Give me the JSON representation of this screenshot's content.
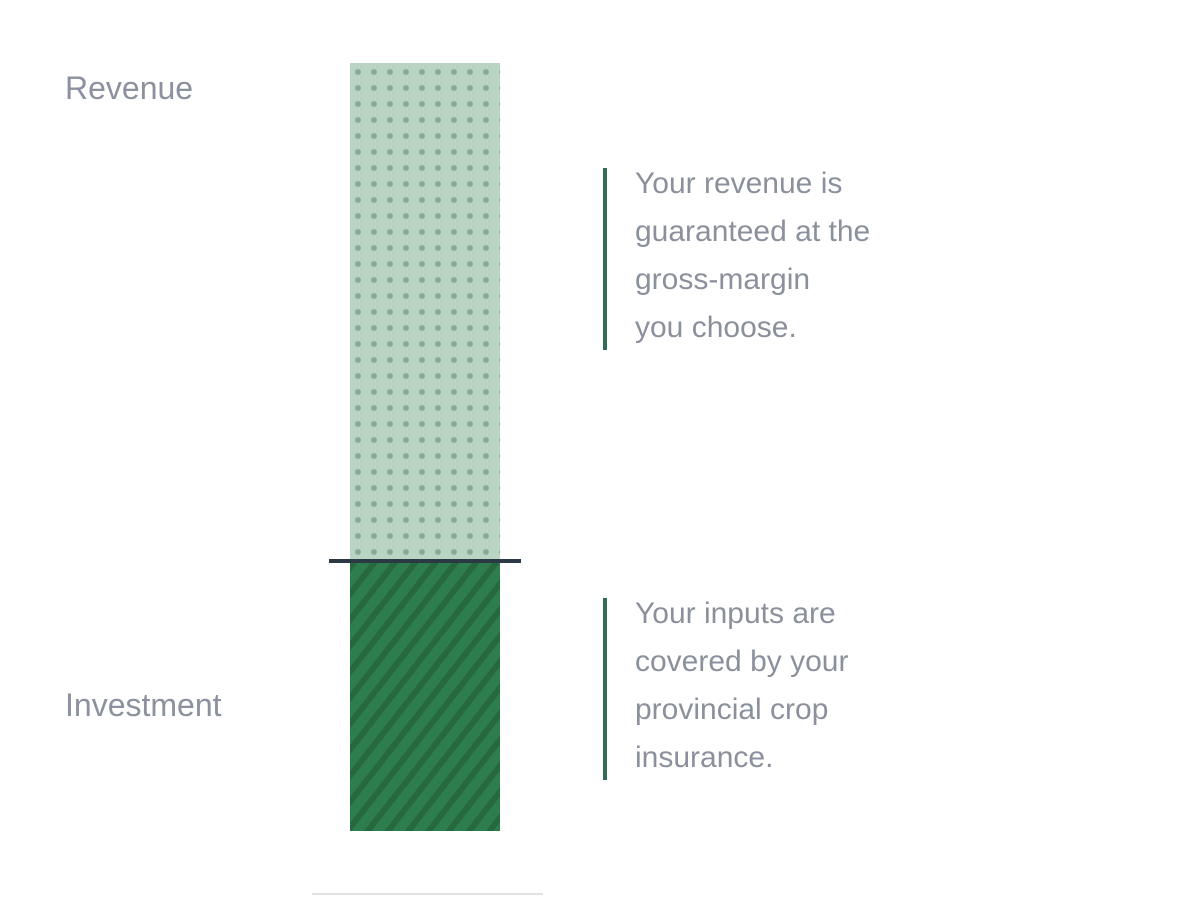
{
  "diagram": {
    "revenue_label": "Revenue",
    "investment_label": "Investment",
    "callout_revenue": {
      "lines": [
        "Your revenue is",
        "guaranteed at the",
        "gross-margin",
        "you choose."
      ]
    },
    "callout_investment": {
      "lines": [
        "Your inputs are",
        "covered by your",
        "provincial crop",
        "insurance."
      ]
    },
    "bar": {
      "segments": [
        {
          "name": "Revenue",
          "pattern": "dotted",
          "fill": "#bad4c3",
          "pattern_color": "#84af92"
        },
        {
          "name": "Investment",
          "pattern": "diagonal-stripes",
          "fill": "#2e7d4e",
          "pattern_color": "#27693f"
        }
      ],
      "divider_color": "#2b3845"
    },
    "colors": {
      "accent_line": "#2f6e52",
      "label_text": "#8b919e",
      "callout_text": "#8b919c",
      "bottom_rule": "#e2e2e2",
      "background": "#ffffff"
    }
  }
}
